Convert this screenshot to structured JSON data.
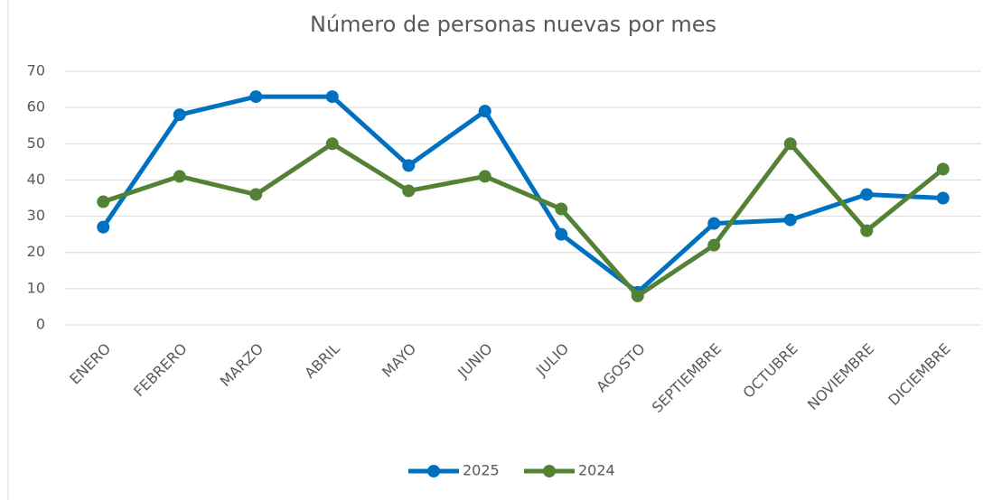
{
  "chart_data": {
    "type": "line",
    "title": "Número de personas nuevas por mes",
    "categories": [
      "ENERO",
      "FEBRERO",
      "MARZO",
      "ABRIL",
      "MAYO",
      "JUNIO",
      "JULIO",
      "AGOSTO",
      "SEPTIEMBRE",
      "OCTUBRE",
      "NOVIEMBRE",
      "DICIEMBRE"
    ],
    "series": [
      {
        "name": "2025",
        "color": "#0070c0",
        "values": [
          27,
          58,
          63,
          63,
          44,
          59,
          25,
          9,
          28,
          29,
          36,
          35
        ]
      },
      {
        "name": "2024",
        "color": "#548235",
        "values": [
          34,
          41,
          36,
          50,
          37,
          41,
          32,
          8,
          22,
          50,
          26,
          43
        ]
      }
    ],
    "ylim": [
      0,
      70
    ],
    "yticks": [
      0,
      10,
      20,
      30,
      40,
      50,
      60,
      70
    ],
    "grid": true,
    "legend": "bottom"
  }
}
